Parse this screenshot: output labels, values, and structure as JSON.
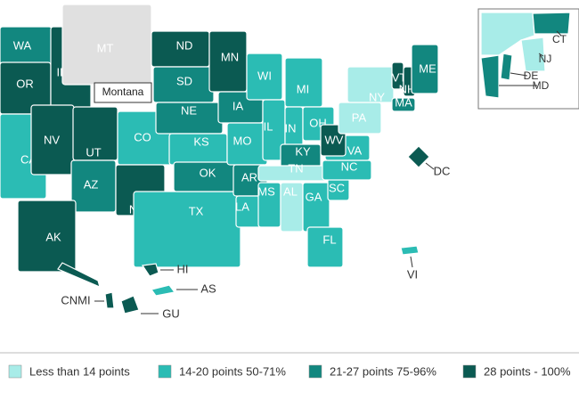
{
  "map": {
    "states": [
      {
        "label": "WA",
        "color": "#12877f"
      },
      {
        "label": "OR",
        "color": "#0b5a52"
      },
      {
        "label": "CA",
        "color": "#2bbcb4"
      },
      {
        "label": "ID",
        "color": "#0b5a52"
      },
      {
        "label": "NV",
        "color": "#0b5a52"
      },
      {
        "label": "MT",
        "color": "#e0e0e0"
      },
      {
        "label": "UT",
        "color": "#0b5a52"
      },
      {
        "label": "AZ",
        "color": "#12877f"
      },
      {
        "label": "CO",
        "color": "#2bbcb4"
      },
      {
        "label": "NM",
        "color": "#0b5a52"
      },
      {
        "label": "ND",
        "color": "#0b5a52"
      },
      {
        "label": "SD",
        "color": "#12877f"
      },
      {
        "label": "NE",
        "color": "#12877f"
      },
      {
        "label": "KS",
        "color": "#2bbcb4"
      },
      {
        "label": "TX",
        "color": "#2bbcb4"
      },
      {
        "label": "OK",
        "color": "#12877f"
      },
      {
        "label": "MN",
        "color": "#0b5a52"
      },
      {
        "label": "IA",
        "color": "#12877f"
      },
      {
        "label": "MO",
        "color": "#2bbcb4"
      },
      {
        "label": "AR",
        "color": "#12877f"
      },
      {
        "label": "LA",
        "color": "#2bbcb4"
      },
      {
        "label": "WI",
        "color": "#2bbcb4"
      },
      {
        "label": "IL",
        "color": "#2bbcb4"
      },
      {
        "label": "MI",
        "color": "#2bbcb4"
      },
      {
        "label": "IN",
        "color": "#2bbcb4"
      },
      {
        "label": "OH",
        "color": "#2bbcb4"
      },
      {
        "label": "KY",
        "color": "#12877f"
      },
      {
        "label": "TN",
        "color": "#a8ece8"
      },
      {
        "label": "MS",
        "color": "#2bbcb4"
      },
      {
        "label": "AL",
        "color": "#a8ece8"
      },
      {
        "label": "GA",
        "color": "#2bbcb4"
      },
      {
        "label": "FL",
        "color": "#2bbcb4"
      },
      {
        "label": "SC",
        "color": "#2bbcb4"
      },
      {
        "label": "NC",
        "color": "#2bbcb4"
      },
      {
        "label": "VA",
        "color": "#2bbcb4"
      },
      {
        "label": "WV",
        "color": "#0b5a52"
      },
      {
        "label": "PA",
        "color": "#a8ece8"
      },
      {
        "label": "NY",
        "color": "#a8ece8"
      },
      {
        "label": "VT",
        "color": "#0b5a52"
      },
      {
        "label": "NH",
        "color": "#0b5a52"
      },
      {
        "label": "MA",
        "color": "#12877f"
      },
      {
        "label": "ME",
        "color": "#12877f"
      },
      {
        "label": "AK",
        "color": "#0b5a52"
      }
    ],
    "outside": [
      {
        "label": "HI",
        "color": "#0b5a52"
      },
      {
        "label": "AS",
        "color": "#2bbcb4"
      },
      {
        "label": "CNMI",
        "color": "#0b5a52"
      },
      {
        "label": "GU",
        "color": "#0b5a52"
      },
      {
        "label": "VI",
        "color": "#2bbcb4"
      },
      {
        "label": "DC",
        "color": "#0b5a52"
      },
      {
        "label": "NJ",
        "color": "#a8ece8"
      },
      {
        "label": "DE",
        "color": "#12877f"
      },
      {
        "label": "MD",
        "color": "#12877f"
      },
      {
        "label": "CT",
        "color": "#12877f"
      }
    ],
    "tooltip": "Montana",
    "legend": [
      {
        "label": "Less than 14 points",
        "color": "#a8ece8"
      },
      {
        "label": "14-20 points 50-71%",
        "color": "#2bbcb4"
      },
      {
        "label": "21-27 points 75-96%",
        "color": "#12877f"
      },
      {
        "label": "28 points - 100%",
        "color": "#0b5a52"
      }
    ]
  }
}
